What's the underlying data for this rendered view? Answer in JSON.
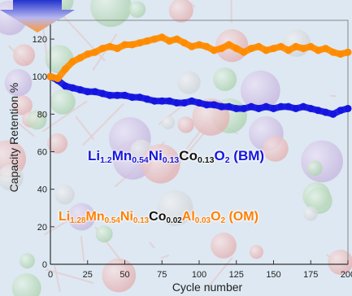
{
  "colors": {
    "bm_series": "#1515e0",
    "om_series": "#ff8c00",
    "om_text": "#ff7f00",
    "arrow_top": "#2233cc",
    "arrow_bottom": "#ff9933"
  },
  "chart_data": {
    "type": "line",
    "xlabel": "Cycle number",
    "ylabel": "Capacity Retention %",
    "xlim": [
      0,
      200
    ],
    "ylim": [
      0,
      130
    ],
    "xticks": [
      "0",
      "25",
      "50",
      "75",
      "100",
      "125",
      "150",
      "175",
      "200"
    ],
    "yticks": [
      "0",
      "20",
      "40",
      "60",
      "80",
      "100",
      "120"
    ],
    "grid": false,
    "legend": "none",
    "series": [
      {
        "name": "Li1.2Mn0.54Ni0.13Co0.13O2 (BM)",
        "x": [
          0,
          5,
          10,
          15,
          20,
          25,
          30,
          35,
          40,
          45,
          50,
          55,
          60,
          65,
          70,
          75,
          80,
          85,
          90,
          95,
          100,
          105,
          110,
          115,
          120,
          125,
          130,
          135,
          140,
          145,
          150,
          155,
          160,
          165,
          170,
          175,
          180,
          185,
          190,
          195,
          200
        ],
        "values": [
          100,
          98,
          95,
          94,
          93,
          92,
          92,
          91,
          90,
          90,
          90,
          89,
          89,
          88,
          87,
          87,
          87,
          86,
          86,
          87,
          86,
          85,
          85,
          84,
          84,
          83,
          83,
          84,
          83,
          84,
          83,
          84,
          84,
          83,
          84,
          83,
          82,
          81,
          80,
          82,
          83
        ]
      },
      {
        "name": "Li1.28Mn0.54Ni0.13Co0.02Al0.03O2 (OM)",
        "x": [
          0,
          5,
          10,
          15,
          20,
          25,
          30,
          35,
          40,
          45,
          50,
          55,
          60,
          65,
          70,
          75,
          80,
          85,
          90,
          95,
          100,
          105,
          110,
          115,
          120,
          125,
          130,
          135,
          140,
          145,
          150,
          155,
          160,
          165,
          170,
          175,
          180,
          185,
          190,
          195,
          200
        ],
        "values": [
          100,
          99,
          104,
          108,
          110,
          112,
          113,
          115,
          116,
          115,
          117,
          117,
          118,
          119,
          120,
          121,
          119,
          120,
          118,
          116,
          117,
          116,
          114,
          115,
          117,
          115,
          113,
          115,
          116,
          114,
          115,
          116,
          114,
          116,
          115,
          116,
          114,
          115,
          113,
          112,
          113
        ]
      }
    ],
    "annotations": {
      "bm": {
        "parts": [
          {
            "t": "Li",
            "sub": "1.2"
          },
          {
            "t": "Mn",
            "sub": "0.54"
          },
          {
            "t": "Ni",
            "sub": "0.13"
          },
          {
            "t": "Co",
            "sub": "0.13"
          },
          {
            "t": "O",
            "sub": "2"
          },
          {
            "t": " (BM)",
            "sub": ""
          }
        ]
      },
      "om": {
        "parts": [
          {
            "t": "Li",
            "sub": "1.28"
          },
          {
            "t": "Mn",
            "sub": "0.54"
          },
          {
            "t": "Ni",
            "sub": "0.13"
          },
          {
            "t": "Co",
            "sub": "0.02"
          },
          {
            "t": "Al",
            "sub": "0.03"
          },
          {
            "t": "O",
            "sub": "2"
          },
          {
            "t": "  (OM)",
            "sub": ""
          }
        ]
      }
    }
  }
}
